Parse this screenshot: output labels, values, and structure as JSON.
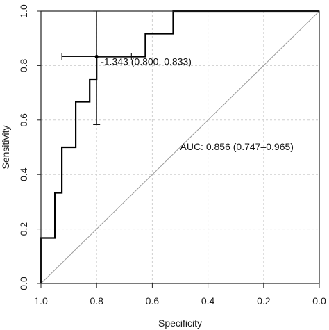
{
  "chart_data": {
    "type": "line",
    "title": "",
    "xlabel": "Specificity",
    "ylabel": "Sensitivity",
    "xlim": [
      1.0,
      0.0
    ],
    "ylim": [
      0.0,
      1.0
    ],
    "x_reversed": true,
    "grid": true,
    "xticks": [
      "1.0",
      "0.8",
      "0.6",
      "0.4",
      "0.2",
      "0.0"
    ],
    "xtick_values": [
      1.0,
      0.8,
      0.6,
      0.4,
      0.2,
      0.0
    ],
    "yticks": [
      "0.0",
      "0.2",
      "0.4",
      "0.6",
      "0.8",
      "1.0"
    ],
    "ytick_values": [
      0.0,
      0.2,
      0.4,
      0.6,
      0.8,
      1.0
    ],
    "series": [
      {
        "type": "step",
        "points": [
          [
            1.0,
            0.0
          ],
          [
            1.0,
            0.167
          ],
          [
            0.95,
            0.167
          ],
          [
            0.95,
            0.333
          ],
          [
            0.925,
            0.333
          ],
          [
            0.925,
            0.5
          ],
          [
            0.875,
            0.5
          ],
          [
            0.875,
            0.667
          ],
          [
            0.825,
            0.667
          ],
          [
            0.825,
            0.75
          ],
          [
            0.8,
            0.75
          ],
          [
            0.8,
            0.833
          ],
          [
            0.625,
            0.833
          ],
          [
            0.625,
            0.917
          ],
          [
            0.525,
            0.917
          ],
          [
            0.525,
            1.0
          ],
          [
            0.0,
            1.0
          ]
        ]
      }
    ],
    "reference_line": [
      [
        1.0,
        0.0
      ],
      [
        0.0,
        1.0
      ]
    ],
    "threshold_point": {
      "specificity": 0.8,
      "sensitivity": 0.833,
      "spec_ci": [
        0.925,
        0.675
      ],
      "sens_ci": [
        0.583,
        1.0
      ],
      "label": "-1.343 (0.800, 0.833)"
    },
    "annotations": [
      {
        "text": "AUC: 0.856 (0.747–0.965)",
        "x": 0.5,
        "y": 0.49
      }
    ]
  }
}
